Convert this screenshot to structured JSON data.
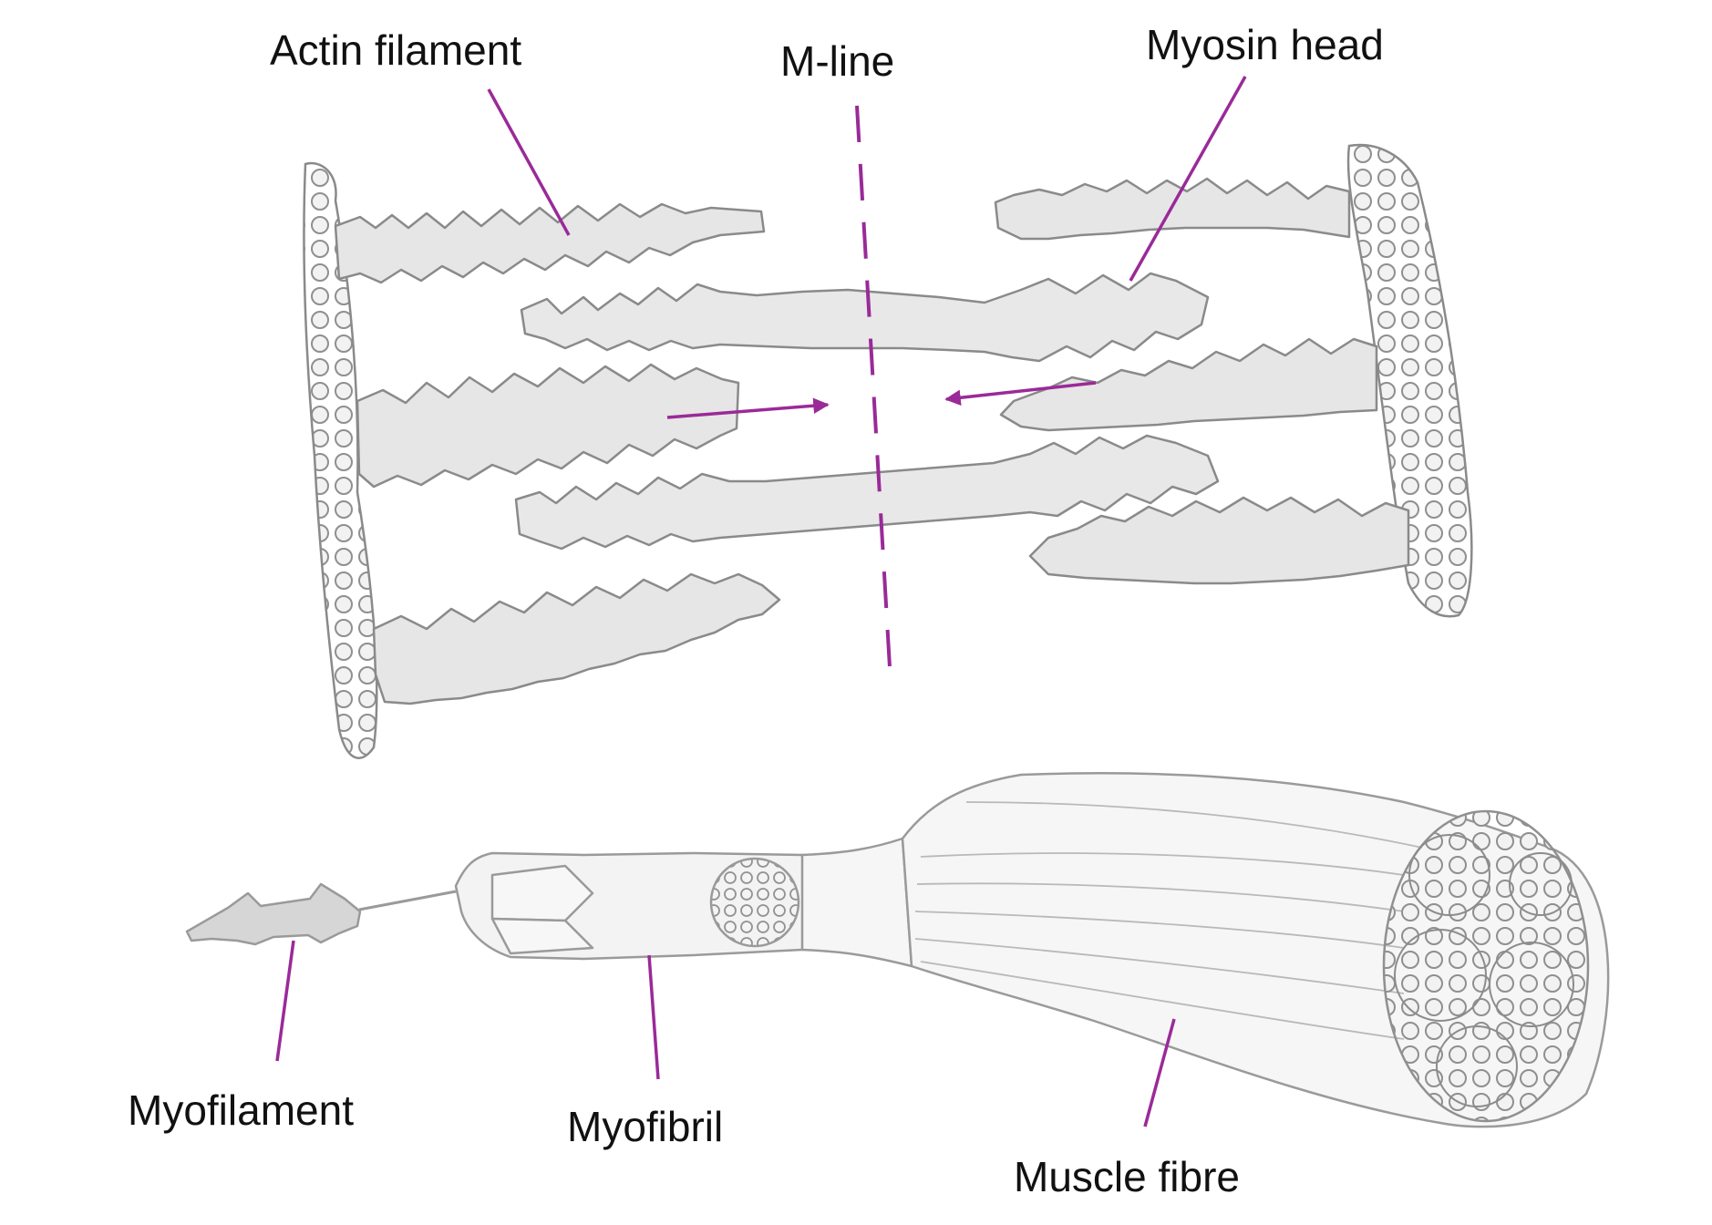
{
  "colors": {
    "accent": "#9a2a98",
    "sketch_fill": "#e6e6e6",
    "sketch_stroke": "#8a8a8a",
    "text": "#111111"
  },
  "labels": {
    "actin_filament": "Actin filament",
    "m_line": "M-line",
    "myosin_head": "Myosin head",
    "myofilament": "Myofilament",
    "myofibril": "Myofibril",
    "muscle_fibre": "Muscle fibre"
  }
}
